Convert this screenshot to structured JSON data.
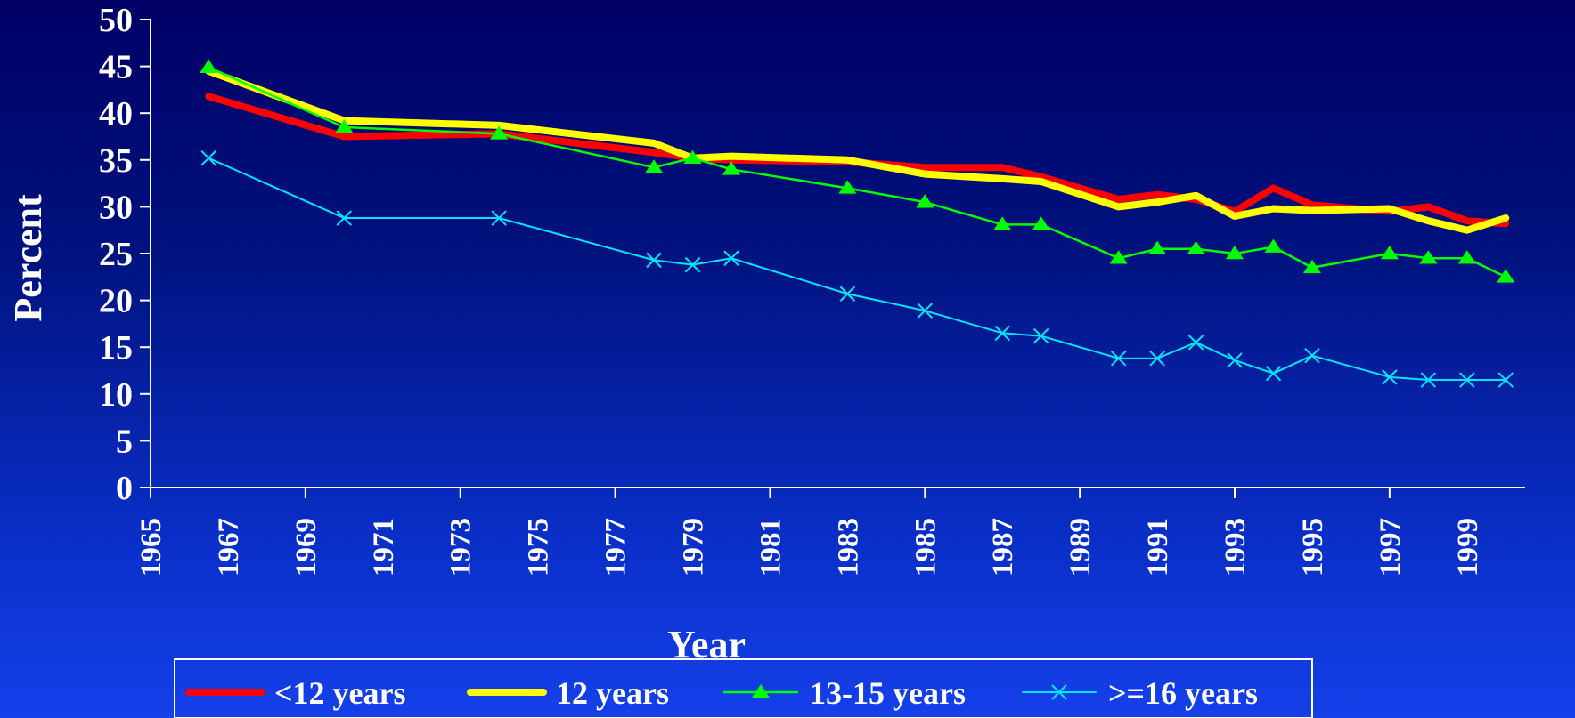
{
  "chart_data": {
    "type": "line",
    "title": "",
    "xlabel": "Year",
    "ylabel": "Percent",
    "xlim": [
      1965,
      2000.5
    ],
    "ylim": [
      0,
      50
    ],
    "y_ticks": [
      "0",
      "5",
      "10",
      "15",
      "20",
      "25",
      "30",
      "35",
      "40",
      "45",
      "50"
    ],
    "x_ticks": [
      "1965",
      "1967",
      "1969",
      "1971",
      "1973",
      "1975",
      "1977",
      "1979",
      "1981",
      "1983",
      "1985",
      "1987",
      "1989",
      "1991",
      "1993",
      "1995",
      "1997",
      "1999"
    ],
    "grid": false,
    "legend": "bottom",
    "series": [
      {
        "name": "<12 years",
        "color": "#ff0000",
        "marker": "none",
        "points": [
          [
            1966.5,
            41.8
          ],
          [
            1970,
            37.5
          ],
          [
            1974,
            37.8
          ],
          [
            1978,
            35.8
          ],
          [
            1979,
            35.2
          ],
          [
            1980,
            35.0
          ],
          [
            1983,
            34.8
          ],
          [
            1985,
            34.2
          ],
          [
            1987,
            34.2
          ],
          [
            1988,
            33.2
          ],
          [
            1990,
            30.8
          ],
          [
            1991,
            31.3
          ],
          [
            1992,
            30.8
          ],
          [
            1993,
            29.5
          ],
          [
            1994,
            32.0
          ],
          [
            1995,
            30.2
          ],
          [
            1997,
            29.5
          ],
          [
            1998,
            30.0
          ],
          [
            1999,
            28.5
          ],
          [
            2000,
            28.2
          ]
        ]
      },
      {
        "name": "12 years",
        "color": "#ffff00",
        "marker": "none",
        "points": [
          [
            1966.5,
            44.5
          ],
          [
            1970,
            39.2
          ],
          [
            1974,
            38.7
          ],
          [
            1978,
            36.8
          ],
          [
            1979,
            35.2
          ],
          [
            1980,
            35.4
          ],
          [
            1983,
            35.0
          ],
          [
            1985,
            33.5
          ],
          [
            1987,
            33.0
          ],
          [
            1988,
            32.7
          ],
          [
            1990,
            30.0
          ],
          [
            1991,
            30.5
          ],
          [
            1992,
            31.2
          ],
          [
            1993,
            29.0
          ],
          [
            1994,
            29.8
          ],
          [
            1995,
            29.6
          ],
          [
            1997,
            29.8
          ],
          [
            1998,
            28.5
          ],
          [
            1999,
            27.5
          ],
          [
            2000,
            28.8
          ]
        ]
      },
      {
        "name": "13-15 years",
        "color": "#00ff00",
        "marker": "triangle",
        "points": [
          [
            1966.5,
            44.9
          ],
          [
            1970,
            38.5
          ],
          [
            1974,
            37.8
          ],
          [
            1978,
            34.2
          ],
          [
            1979,
            35.2
          ],
          [
            1980,
            34.0
          ],
          [
            1983,
            32.0
          ],
          [
            1985,
            30.5
          ],
          [
            1987,
            28.1
          ],
          [
            1988,
            28.1
          ],
          [
            1990,
            24.5
          ],
          [
            1991,
            25.5
          ],
          [
            1992,
            25.5
          ],
          [
            1993,
            25.0
          ],
          [
            1994,
            25.7
          ],
          [
            1995,
            23.5
          ],
          [
            1997,
            25.0
          ],
          [
            1998,
            24.5
          ],
          [
            1999,
            24.5
          ],
          [
            2000,
            22.5
          ]
        ]
      },
      {
        "name": ">=16 years",
        "color": "#00e6ff",
        "marker": "x",
        "points": [
          [
            1966.5,
            35.2
          ],
          [
            1970,
            28.8
          ],
          [
            1974,
            28.8
          ],
          [
            1978,
            24.3
          ],
          [
            1979,
            23.8
          ],
          [
            1980,
            24.5
          ],
          [
            1983,
            20.7
          ],
          [
            1985,
            18.9
          ],
          [
            1987,
            16.5
          ],
          [
            1988,
            16.2
          ],
          [
            1990,
            13.8
          ],
          [
            1991,
            13.8
          ],
          [
            1992,
            15.5
          ],
          [
            1993,
            13.6
          ],
          [
            1994,
            12.2
          ],
          [
            1995,
            14.1
          ],
          [
            1997,
            11.8
          ],
          [
            1998,
            11.5
          ],
          [
            1999,
            11.5
          ],
          [
            2000,
            11.5
          ]
        ]
      }
    ]
  }
}
